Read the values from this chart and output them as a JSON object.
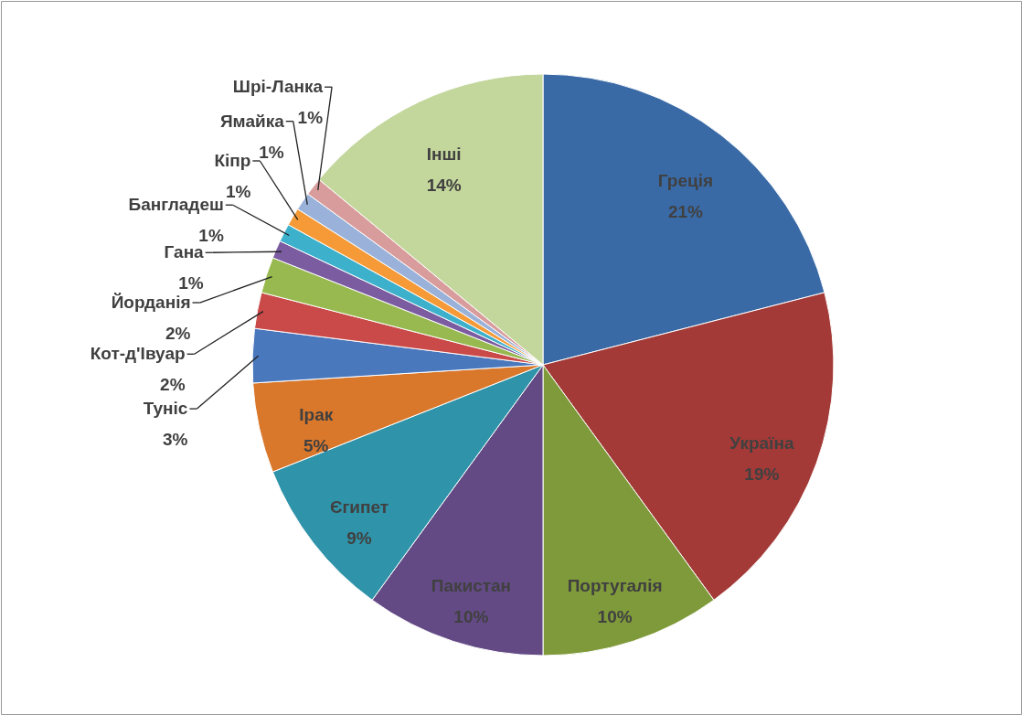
{
  "chart_data": {
    "type": "pie",
    "categories": [
      "Греція",
      "Україна",
      "Португалія",
      "Пакистан",
      "Єгипет",
      "Ірак",
      "Туніс",
      "Кот-д'Івуар",
      "Йорданія",
      "Гана",
      "Бангладеш",
      "Кіпр",
      "Ямайка",
      "Шрі-Ланка",
      "Інші"
    ],
    "values": [
      21,
      19,
      10,
      10,
      9,
      5,
      3,
      2,
      2,
      1,
      1,
      1,
      1,
      1,
      14
    ],
    "value_labels": [
      "21%",
      "19%",
      "10%",
      "10%",
      "9%",
      "5%",
      "3%",
      "2%",
      "2%",
      "1%",
      "1%",
      "1%",
      "1%",
      "1%",
      "14%"
    ],
    "colors": [
      "#3a6aa6",
      "#a33a37",
      "#7f9a3a",
      "#634a85",
      "#2f93a9",
      "#d9772b",
      "#4a78bd",
      "#c94a48",
      "#98b94f",
      "#7b5ca0",
      "#3db0cb",
      "#f59a36",
      "#9ab2d9",
      "#d99c9c",
      "#c3d69b"
    ]
  }
}
